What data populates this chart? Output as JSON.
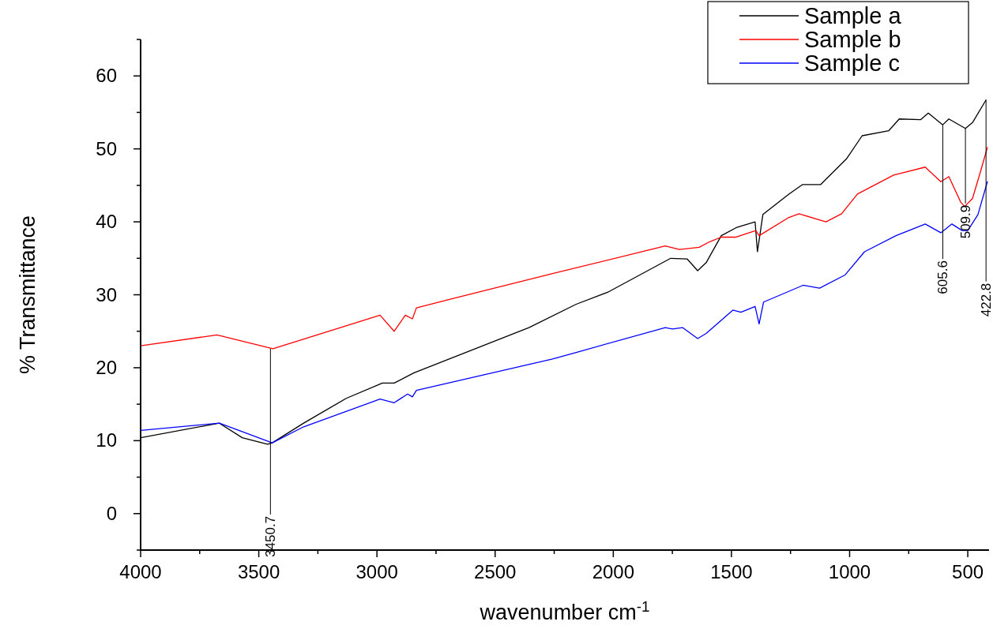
{
  "chart_data": {
    "type": "line",
    "xlabel": "wavenumber  cm$^{-1}$",
    "ylabel": "% Transmittance",
    "xlim": [
      4000,
      410
    ],
    "ylim": [
      -5,
      65
    ],
    "xticks": [
      4000,
      {
        "value": 3750,
        "label": null
      },
      3500,
      {
        "value": 3250,
        "label": null
      },
      3000,
      {
        "value": 2750,
        "label": null
      },
      2500,
      {
        "value": 2250,
        "label": null
      },
      2000,
      {
        "value": 1750,
        "label": null
      },
      1500,
      {
        "value": 1250,
        "label": null
      },
      1000,
      {
        "value": 750,
        "label": null
      },
      500
    ],
    "yticks": [
      {
        "value": -5,
        "label": null
      },
      0,
      {
        "value": 5,
        "label": null
      },
      10,
      {
        "value": 15,
        "label": null
      },
      20,
      {
        "value": 25,
        "label": null
      },
      30,
      {
        "value": 35,
        "label": null
      },
      40,
      {
        "value": 45,
        "label": null
      },
      50,
      {
        "value": 55,
        "label": null
      },
      60,
      {
        "value": 65,
        "label": null
      }
    ],
    "grid": false,
    "legend": "top right",
    "marker": "none",
    "line_style": "solid",
    "series": [
      {
        "name": "Sample a",
        "color": "#000000",
        "x": [
          4000,
          3667,
          3570,
          3463,
          3443,
          3310,
          3130,
          2977,
          2927,
          2843,
          2357,
          2157,
          2020,
          1757,
          1687,
          1643,
          1607,
          1543,
          1480,
          1400,
          1390,
          1367,
          1257,
          1200,
          1123,
          1014,
          947,
          834,
          790,
          700,
          667,
          606,
          580,
          510,
          480,
          423
        ],
        "values": [
          10.4,
          12.4,
          10.4,
          9.5,
          9.7,
          12.4,
          15.8,
          17.9,
          17.9,
          19.3,
          25.5,
          28.7,
          30.4,
          35.0,
          34.9,
          33.3,
          34.4,
          38.1,
          39.2,
          40.0,
          35.9,
          41.0,
          43.8,
          45.1,
          45.1,
          48.6,
          51.8,
          52.5,
          54.1,
          54.0,
          54.9,
          53.3,
          54.1,
          52.8,
          53.6,
          56.7
        ]
      },
      {
        "name": "Sample b",
        "color": "#ff0000",
        "x": [
          4000,
          3677,
          3440,
          2987,
          2927,
          2880,
          2850,
          2833,
          2690,
          2257,
          1780,
          1720,
          1637,
          1590,
          1543,
          1480,
          1397,
          1383,
          1257,
          1214,
          1100,
          1034,
          967,
          814,
          680,
          614,
          580,
          530,
          513,
          480,
          447,
          417
        ],
        "values": [
          23.0,
          24.5,
          22.6,
          27.2,
          25.0,
          27.2,
          26.7,
          28.2,
          29.4,
          32.9,
          36.7,
          36.2,
          36.5,
          37.3,
          37.9,
          37.9,
          38.8,
          38.1,
          40.6,
          41.1,
          40.0,
          41.1,
          43.8,
          46.4,
          47.5,
          45.5,
          46.2,
          42.7,
          42.1,
          43.2,
          46.8,
          50.2
        ]
      },
      {
        "name": "Sample c",
        "color": "#0000ff",
        "x": [
          4000,
          3667,
          3443,
          3310,
          2987,
          2927,
          2870,
          2850,
          2833,
          2257,
          2157,
          1780,
          1750,
          1707,
          1643,
          1607,
          1494,
          1460,
          1400,
          1383,
          1364,
          1197,
          1127,
          1020,
          937,
          804,
          680,
          614,
          567,
          524,
          500,
          457,
          417
        ],
        "values": [
          11.4,
          12.4,
          9.7,
          11.9,
          15.7,
          15.2,
          16.4,
          16.0,
          16.9,
          21.2,
          22.1,
          25.5,
          25.3,
          25.5,
          24.0,
          24.7,
          27.9,
          27.6,
          28.4,
          26.0,
          29.0,
          31.3,
          30.9,
          32.7,
          35.9,
          38.1,
          39.7,
          38.5,
          39.7,
          38.8,
          38.8,
          41.0,
          45.5
        ]
      }
    ],
    "annotations": [
      {
        "text": "3450.7",
        "x": 3450.7,
        "y": 22.6
      },
      {
        "text": "605.6",
        "x": 605.6,
        "y": 53.3
      },
      {
        "text": "509.9",
        "x": 509.9,
        "y": 52.8
      },
      {
        "text": "422.8",
        "x": 422.8,
        "y": 56.7
      }
    ]
  }
}
